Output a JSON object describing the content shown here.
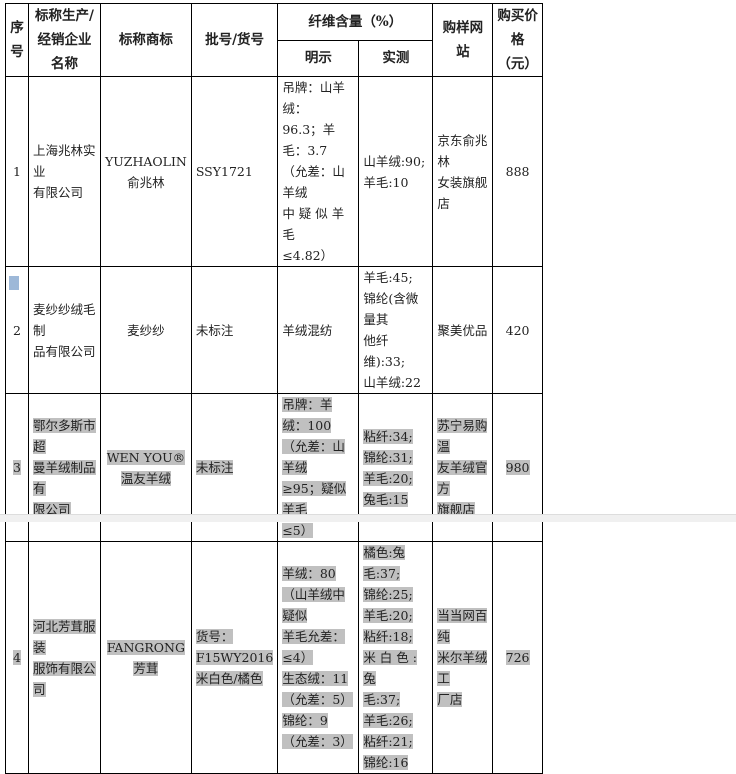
{
  "header": {
    "seq": "序号",
    "company": "标称生产/经销企业名称",
    "brand": "标称商标",
    "batch": "批号/货号",
    "fiber": "纤维含量（%）",
    "declared": "明示",
    "measured": "实测",
    "site": "购样网站",
    "price": "购买价格（元）"
  },
  "rows": [
    {
      "highlighted": false,
      "seq": [
        "1"
      ],
      "company": [
        "上海兆林实业",
        "有限公司"
      ],
      "brand": [
        "YUZHAOLIN",
        "俞兆林"
      ],
      "batch": [
        "SSY1721"
      ],
      "declared": [
        "吊牌：山羊绒：",
        "96.3；羊毛：3.7",
        "（允差：山羊绒",
        "中 疑 似 羊 毛",
        "≤4.82）"
      ],
      "measured": [
        "山羊绒:90;",
        "羊毛:10"
      ],
      "site": [
        "京东俞兆林",
        "女装旗舰店"
      ],
      "price": [
        "888"
      ]
    },
    {
      "highlighted": false,
      "seq": [
        "2"
      ],
      "company": [
        "麦纱纱绒毛制",
        "品有限公司"
      ],
      "brand": [
        "麦纱纱"
      ],
      "batch": [
        "未标注"
      ],
      "declared": [
        "羊绒混纺"
      ],
      "measured": [
        "羊毛:45;",
        "锦纶(含微量其",
        "他纤维):33;",
        "山羊绒:22"
      ],
      "site": [
        "聚美优品"
      ],
      "price": [
        "420"
      ]
    },
    {
      "highlighted": true,
      "seq": [
        "3"
      ],
      "company": [
        "鄂尔多斯市超",
        "曼羊绒制品有",
        "限公司"
      ],
      "brand": [
        "WEN YOU®",
        "温友羊绒"
      ],
      "batch": [
        "未标注"
      ],
      "declared": [
        "吊牌：羊绒：100",
        "（允差：山羊绒",
        "≥95；疑似羊毛",
        "≤5）"
      ],
      "measured": [
        "粘纤:34;",
        "锦纶:31;",
        "羊毛:20;",
        "兔毛:15"
      ],
      "site": [
        "苏宁易购温",
        "友羊绒官方",
        "旗舰店"
      ],
      "price": [
        "980"
      ]
    },
    {
      "highlighted": true,
      "seq": [
        "4"
      ],
      "company": [
        "河北芳茸服装",
        "服饰有限公司"
      ],
      "brand": [
        "FANGRONG",
        "芳茸"
      ],
      "batch": [
        "货号：",
        "F15WY2016",
        "米白色/橘色"
      ],
      "declared": [
        "羊绒：80",
        "（山羊绒中疑似",
        "羊毛允差：≤4）",
        "生态绒：11",
        "（允差：5）",
        "锦纶：9",
        "（允差：3）"
      ],
      "measured": [
        "橘色:兔毛:37;",
        "锦纶:25;",
        "羊毛:20;",
        "粘纤:18;",
        "米 白 色 : 兔",
        "毛:37;",
        "羊毛:26;",
        "粘纤:21;",
        "锦纶:16"
      ],
      "site": [
        "当当网百纯",
        "米尔羊绒工",
        "厂店"
      ],
      "price": [
        "726"
      ]
    }
  ]
}
